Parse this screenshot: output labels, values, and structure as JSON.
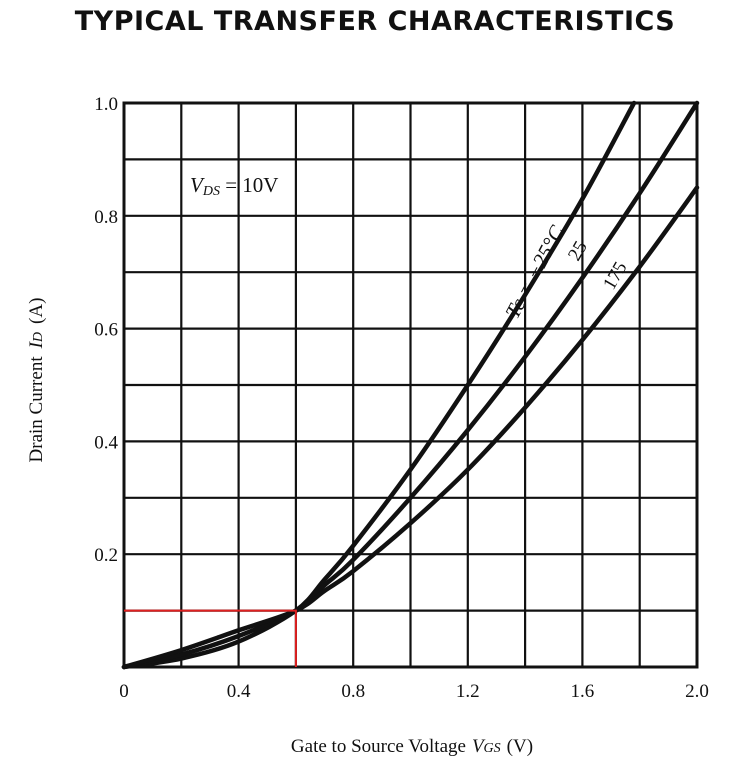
{
  "chart_data": {
    "type": "line",
    "title": "TYPICAL TRANSFER CHARACTERISTICS",
    "xlabel": {
      "main": "Gate to Source Voltage",
      "symbol": "V",
      "subscript": "GS",
      "unit": "(V)"
    },
    "ylabel": {
      "main": "Drain Current",
      "symbol": "I",
      "subscript": "D",
      "unit": "(A)"
    },
    "xlim": [
      0,
      2.0
    ],
    "ylim": [
      0,
      1.0
    ],
    "x_ticks": [
      {
        "value": 0,
        "label": "0"
      },
      {
        "value": 0.4,
        "label": "0.4"
      },
      {
        "value": 0.8,
        "label": "0.8"
      },
      {
        "value": 1.2,
        "label": "1.2"
      },
      {
        "value": 1.6,
        "label": "1.6"
      },
      {
        "value": 2.0,
        "label": "2.0"
      }
    ],
    "y_ticks": [
      {
        "value": 0.2,
        "label": "0.2"
      },
      {
        "value": 0.4,
        "label": "0.4"
      },
      {
        "value": 0.6,
        "label": "0.6"
      },
      {
        "value": 0.8,
        "label": "0.8"
      },
      {
        "value": 1.0,
        "label": "1.0"
      }
    ],
    "grid": {
      "x_step": 0.2,
      "y_step": 0.1
    },
    "condition": {
      "symbol": "V",
      "subscript": "DS",
      "text": " = 10V"
    },
    "series": [
      {
        "name": "Tc = −25°C",
        "label": "Tc = −25°C",
        "x": [
          0,
          0.2,
          0.4,
          0.6,
          0.7,
          0.8,
          1.0,
          1.2,
          1.4,
          1.6,
          1.78
        ],
        "y": [
          0,
          0.015,
          0.045,
          0.1,
          0.155,
          0.215,
          0.35,
          0.5,
          0.66,
          0.83,
          1.0
        ]
      },
      {
        "name": "25",
        "label": "25",
        "x": [
          0,
          0.2,
          0.4,
          0.6,
          0.7,
          0.8,
          1.0,
          1.2,
          1.4,
          1.6,
          1.8,
          2.0
        ],
        "y": [
          0,
          0.022,
          0.055,
          0.1,
          0.145,
          0.19,
          0.3,
          0.42,
          0.55,
          0.69,
          0.84,
          1.0
        ]
      },
      {
        "name": "175",
        "label": "175",
        "x": [
          0,
          0.2,
          0.4,
          0.6,
          0.7,
          0.8,
          1.0,
          1.2,
          1.4,
          1.6,
          1.8,
          2.0
        ],
        "y": [
          0,
          0.03,
          0.065,
          0.1,
          0.135,
          0.17,
          0.255,
          0.35,
          0.46,
          0.58,
          0.71,
          0.85
        ]
      }
    ],
    "annotation_lines": [
      {
        "color": "#e02020",
        "points": [
          [
            0,
            0.1
          ],
          [
            0.6,
            0.1
          ],
          [
            0.6,
            0
          ]
        ]
      }
    ],
    "colors": {
      "line": "#111111",
      "grid": "#111111",
      "annotation": "#e02020"
    }
  }
}
